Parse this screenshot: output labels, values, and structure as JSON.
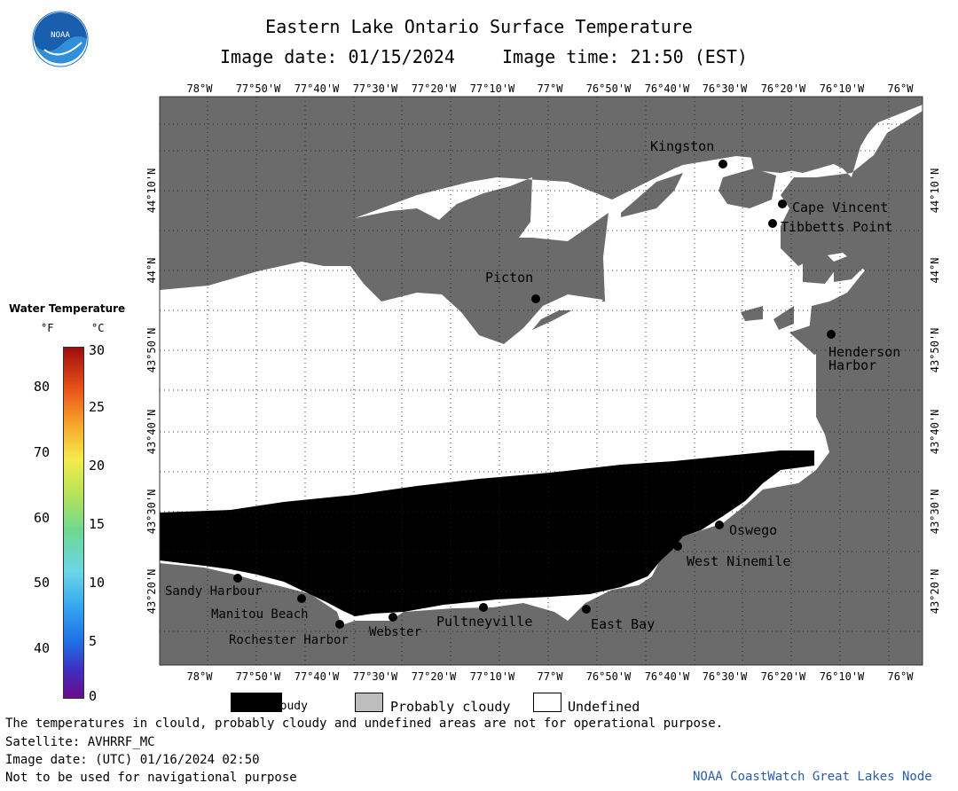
{
  "header": {
    "title": "Eastern Lake Ontario Surface Temperature",
    "subtitle_date": "Image date: 01/15/2024",
    "subtitle_time": "Image time: 21:50 (EST)",
    "logo_text": "NOAA"
  },
  "map": {
    "lon_labels": [
      "78°W",
      "77°50'W",
      "77°40'W",
      "77°30'W",
      "77°20'W",
      "77°10'W",
      "77°W",
      "76°50'W",
      "76°40'W",
      "76°30'W",
      "76°20'W",
      "76°10'W",
      "76°W"
    ],
    "lat_labels": [
      "44°10'N",
      "44°N",
      "43°50'N",
      "43°40'N",
      "43°30'N",
      "43°20'N"
    ],
    "places": [
      {
        "name": "Kingston"
      },
      {
        "name": "Cape Vincent"
      },
      {
        "name": "Tibbetts Point"
      },
      {
        "name": "Picton"
      },
      {
        "name": "Henderson"
      },
      {
        "name": "Harbor"
      },
      {
        "name": "Oswego"
      },
      {
        "name": "West Ninemile"
      },
      {
        "name": "Sandy Harbour"
      },
      {
        "name": "Manitou Beach"
      },
      {
        "name": "Rochester Harbor"
      },
      {
        "name": "Webster"
      },
      {
        "name": "Pultneyville"
      },
      {
        "name": "East Bay"
      }
    ],
    "colors": {
      "land": "#6b6b6b",
      "cloud": "#000000",
      "undefined": "#ffffff",
      "probably_cloudy": "#bdbdbd"
    }
  },
  "colorbar": {
    "title": "Water Temperature",
    "unit_f": "°F",
    "unit_c": "°C",
    "f_ticks": [
      "80",
      "70",
      "60",
      "50",
      "40"
    ],
    "c_ticks": [
      "30",
      "25",
      "20",
      "15",
      "10",
      "5",
      "0"
    ]
  },
  "legend": {
    "cloudy": "Cloudy",
    "probably_cloudy": "Probably cloudy",
    "undefined": "Undefined"
  },
  "footer": {
    "disclaimer": "The temperatures in clould, probably cloudy and undefined areas are not for operational purpose.",
    "satellite": "Satellite: AVHRRF_MC",
    "image_date_utc": "Image date: (UTC) 01/16/2024  02:50",
    "nav_warning": "Not to be used for navigational purpose",
    "credit": "NOAA CoastWatch Great Lakes Node"
  }
}
